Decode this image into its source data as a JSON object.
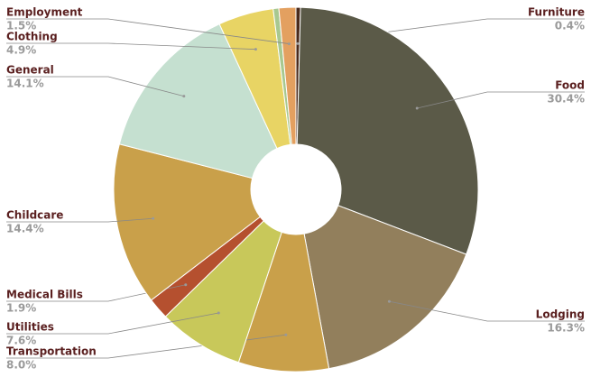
{
  "chart_data": {
    "type": "donut",
    "categories": [
      "Furniture",
      "Food",
      "Lodging",
      "Transportation",
      "Utilities",
      "Medical Bills",
      "Childcare",
      "General",
      "Clothing",
      null,
      "Employment"
    ],
    "values": [
      0.4,
      30.4,
      16.3,
      8.0,
      7.6,
      1.9,
      14.4,
      14.1,
      4.9,
      0.5,
      1.5
    ],
    "value_labels": [
      "0.4%",
      "30.4%",
      "16.3%",
      "8.0%",
      "7.6%",
      "1.9%",
      "14.4%",
      "14.1%",
      "4.9%",
      null,
      "1.5%"
    ],
    "colors": [
      "#4a2a1c",
      "#5b5a48",
      "#927f5c",
      "#c9a04a",
      "#c8c85a",
      "#b5502f",
      "#c9a04a",
      "#c5e0d0",
      "#e8d464",
      "#a8c890",
      "#e3a060"
    ]
  }
}
